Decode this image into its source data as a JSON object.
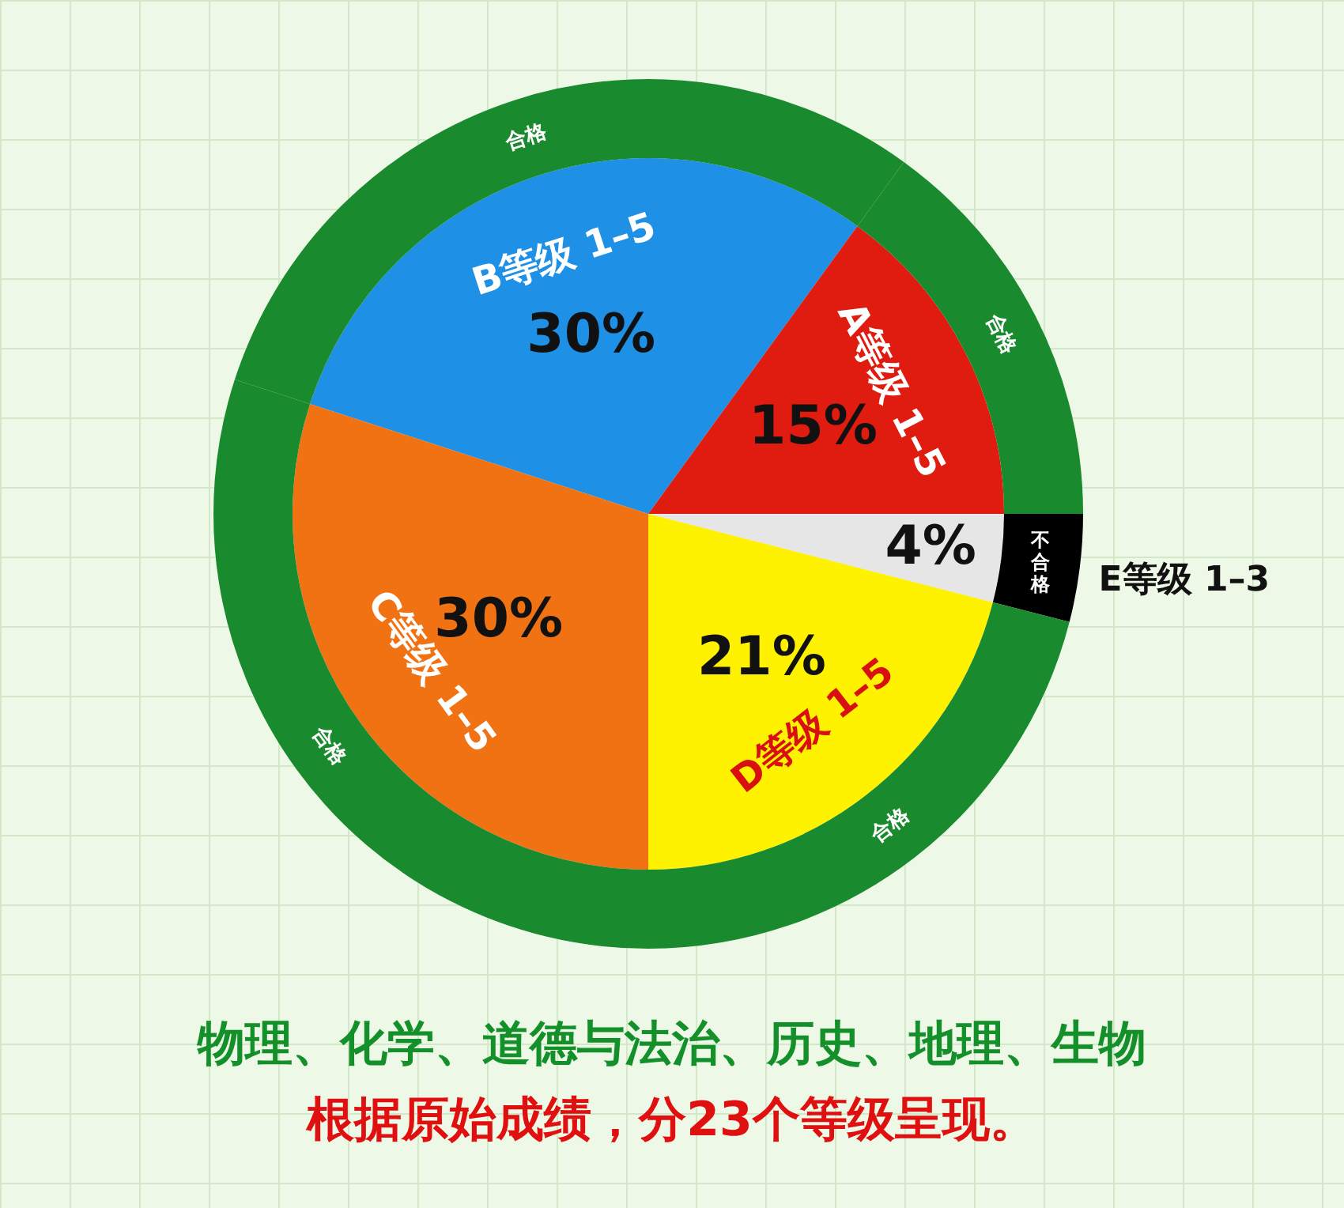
{
  "chart_data": {
    "type": "pie",
    "title": "物理、化学、道德与法治、历史、地理、生物",
    "subtitle": "根据原始成绩，分23个等级呈现。",
    "categories": [
      "B等级 1–5",
      "A等级 1–5",
      "E等级 1–3",
      "D等级 1–5",
      "C等级 1–5"
    ],
    "series": [
      {
        "type": "donut",
        "values": [
          30,
          15,
          4,
          21,
          30
        ],
        "colors": [
          "#1a8a2e",
          "#1a8a2e",
          "#000000",
          "#1a8a2e",
          "#1a8a2e"
        ],
        "value_labels": [
          "合格",
          "合格",
          "不合格",
          "合格",
          "合格"
        ]
      },
      {
        "type": "pie",
        "values": [
          30,
          15,
          4,
          21,
          30
        ],
        "colors": [
          "#1e90e6",
          "#e01b10",
          "#e6e6e6",
          "#fff200",
          "#f07212"
        ],
        "value_labels": [
          "30%",
          "15%",
          "4%",
          "21%",
          "30%"
        ]
      }
    ],
    "legend": false
  }
}
